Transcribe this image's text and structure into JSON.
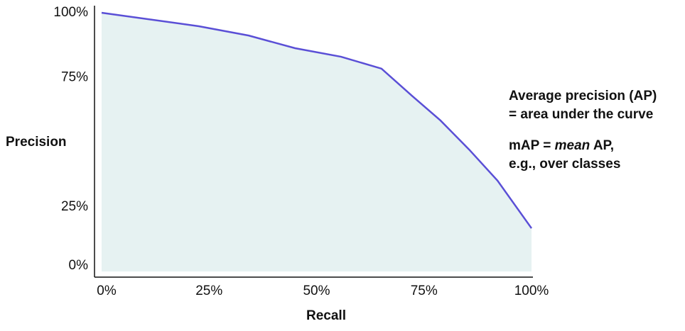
{
  "chart_data": {
    "type": "area",
    "x_label": "Recall",
    "y_label": "Precision",
    "x": [
      0,
      22.6,
      34.2,
      45,
      55.7,
      65.1,
      72.2,
      78.8,
      85.5,
      92.1,
      100
    ],
    "values": [
      100,
      94.8,
      91.2,
      86.3,
      83.0,
      78.4,
      67.9,
      58.4,
      47.1,
      35.1,
      16.7
    ],
    "line_color": "#5a4fd6",
    "fill_color": "#e6f2f2",
    "xlim": [
      0,
      100
    ],
    "ylim": [
      0,
      100
    ],
    "xticks": [
      {
        "value": 0,
        "label": "0%"
      },
      {
        "value": 25,
        "label": "25%"
      },
      {
        "value": 50,
        "label": "50%"
      },
      {
        "value": 75,
        "label": "75%"
      },
      {
        "value": 100,
        "label": "100%"
      }
    ],
    "yticks": [
      {
        "value": 0,
        "label": "0%"
      },
      {
        "value": 25,
        "label": "25%"
      },
      {
        "value": 75,
        "label": "75%"
      },
      {
        "value": 100,
        "label": "100%"
      }
    ],
    "grid": false,
    "annotations": [
      "Average precision (AP)",
      "= area under the curve",
      "mAP = ",
      "mean",
      " AP,",
      "e.g., over classes"
    ]
  }
}
